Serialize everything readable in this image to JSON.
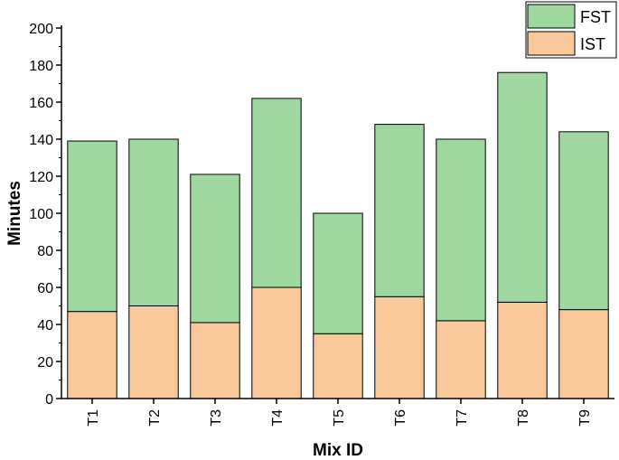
{
  "chart_data": {
    "type": "bar",
    "stacked": true,
    "categories": [
      "T1",
      "T2",
      "T3",
      "T4",
      "T5",
      "T6",
      "T7",
      "T8",
      "T9"
    ],
    "series": [
      {
        "name": "IST",
        "values": [
          47,
          50,
          41,
          60,
          35,
          55,
          42,
          52,
          48
        ],
        "color": "#f9c89b"
      },
      {
        "name": "FST",
        "values": [
          92,
          90,
          80,
          102,
          65,
          93,
          98,
          124,
          96
        ],
        "color": "#9fd89f"
      }
    ],
    "totals": [
      139,
      140,
      121,
      162,
      100,
      148,
      140,
      176,
      144
    ],
    "xlabel": "Mix ID",
    "ylabel": "Minutes",
    "ylim": [
      0,
      200
    ],
    "yticks": [
      0,
      20,
      40,
      60,
      80,
      100,
      120,
      140,
      160,
      180,
      200
    ],
    "grid": false,
    "legend": {
      "placement": "top-right",
      "order": [
        "FST",
        "IST"
      ]
    }
  }
}
